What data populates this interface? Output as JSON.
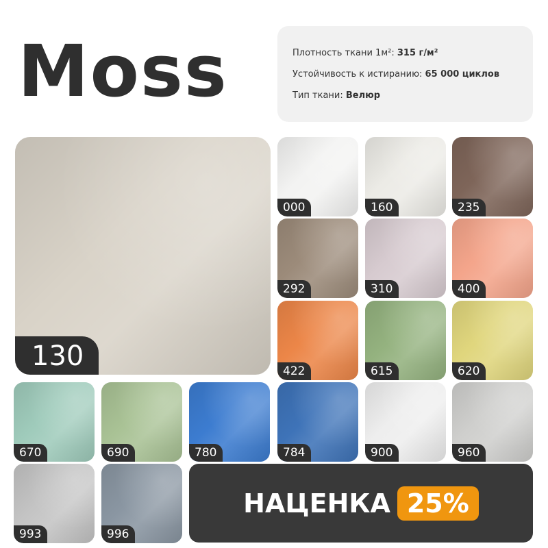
{
  "title": "Moss",
  "specs": [
    {
      "label": "Плотность ткани 1м²: ",
      "value": "315 г/м²"
    },
    {
      "label": "Устойчивость к истиранию: ",
      "value": "65 000 циклов"
    },
    {
      "label": "Тип ткани: ",
      "value": "Велюр"
    }
  ],
  "featured": {
    "code": "130",
    "color": "#d9d3c8"
  },
  "swatches": [
    {
      "code": "000",
      "color": "#f3f3f2"
    },
    {
      "code": "160",
      "color": "#ecebe6"
    },
    {
      "code": "235",
      "color": "#7e6559"
    },
    {
      "code": "292",
      "color": "#9c8b7a"
    },
    {
      "code": "310",
      "color": "#d7cbd0"
    },
    {
      "code": "400",
      "color": "#f4a58b"
    },
    {
      "code": "422",
      "color": "#ec8648"
    },
    {
      "code": "615",
      "color": "#94b27f"
    },
    {
      "code": "620",
      "color": "#e0d67d"
    },
    {
      "code": "670",
      "color": "#9fcbbb"
    },
    {
      "code": "690",
      "color": "#a9c295"
    },
    {
      "code": "780",
      "color": "#3c7cd0"
    },
    {
      "code": "784",
      "color": "#3e73b8"
    },
    {
      "code": "900",
      "color": "#eeeeee"
    },
    {
      "code": "960",
      "color": "#cfcfcd"
    },
    {
      "code": "993",
      "color": "#c4c4c4"
    },
    {
      "code": "996",
      "color": "#8a96a2"
    }
  ],
  "banner": {
    "text": "НАЦЕНКА",
    "percent": "25%",
    "accent": "#f0960f"
  }
}
